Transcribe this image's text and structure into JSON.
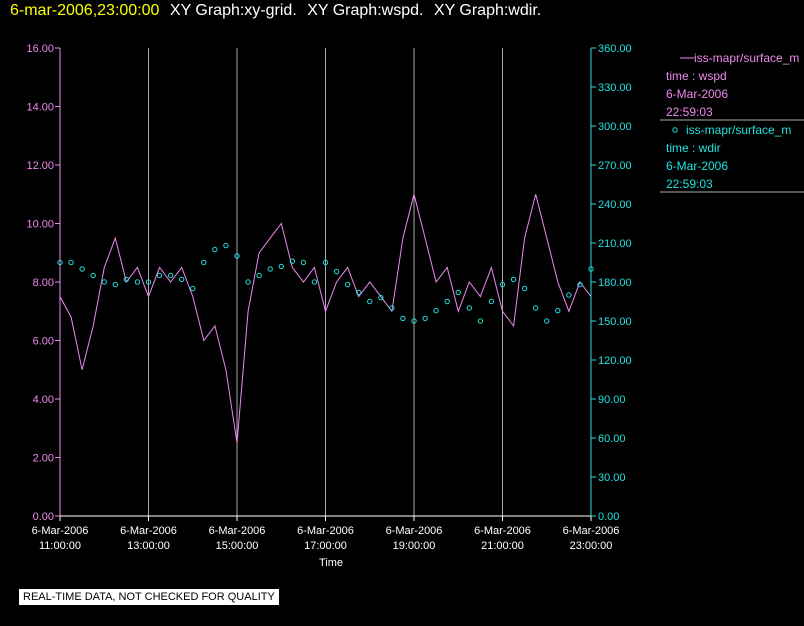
{
  "header": {
    "date": "6-mar-2006,23:00:00",
    "titles": [
      "XY Graph:xy-grid.",
      "XY Graph:wspd.",
      "XY Graph:wdir."
    ]
  },
  "note": "REAL-TIME DATA, NOT CHECKED FOR QUALITY",
  "colors": {
    "wspd": "#ee88ee",
    "wdir": "#22e0e0",
    "grid": "#aaaaaa",
    "title_date": "#ffff00"
  },
  "chart_data": {
    "type": "line",
    "xlabel": "Time",
    "x_ticks": [
      {
        "date": "6-Mar-2006",
        "time": "11:00:00"
      },
      {
        "date": "6-Mar-2006",
        "time": "13:00:00"
      },
      {
        "date": "6-Mar-2006",
        "time": "15:00:00"
      },
      {
        "date": "6-Mar-2006",
        "time": "17:00:00"
      },
      {
        "date": "6-Mar-2006",
        "time": "19:00:00"
      },
      {
        "date": "6-Mar-2006",
        "time": "21:00:00"
      },
      {
        "date": "6-Mar-2006",
        "time": "23:00:00"
      }
    ],
    "xlim_hours": [
      11,
      23
    ],
    "y_left": {
      "ylim": [
        0,
        16
      ],
      "ticks": [
        "0.00",
        "2.00",
        "4.00",
        "6.00",
        "8.00",
        "10.00",
        "12.00",
        "14.00",
        "16.00"
      ]
    },
    "y_right": {
      "ylim": [
        0,
        360
      ],
      "ticks": [
        "0.00",
        "30.00",
        "60.00",
        "90.00",
        "120.00",
        "150.00",
        "180.00",
        "210.00",
        "240.00",
        "270.00",
        "300.00",
        "330.00",
        "360.00"
      ]
    },
    "grid": "vertical",
    "legend_position": "right",
    "series": [
      {
        "name": "iss-mapr/surface_m",
        "var": "time : wspd",
        "last_date": "6-Mar-2006",
        "last_time": "22:59:03",
        "axis": "left",
        "style": "line",
        "x": [
          11.0,
          11.25,
          11.5,
          11.75,
          12.0,
          12.25,
          12.5,
          12.75,
          13.0,
          13.25,
          13.5,
          13.75,
          14.0,
          14.25,
          14.5,
          14.75,
          15.0,
          15.25,
          15.5,
          15.75,
          16.0,
          16.25,
          16.5,
          16.75,
          17.0,
          17.25,
          17.5,
          17.75,
          18.0,
          18.25,
          18.5,
          18.75,
          19.0,
          19.25,
          19.5,
          19.75,
          20.0,
          20.25,
          20.5,
          20.75,
          21.0,
          21.25,
          21.5,
          21.75,
          22.0,
          22.25,
          22.5,
          22.75,
          23.0
        ],
        "y": [
          7.5,
          6.8,
          5.0,
          6.5,
          8.5,
          9.5,
          8.0,
          8.5,
          7.5,
          8.5,
          8.0,
          8.5,
          7.5,
          6.0,
          6.5,
          5.0,
          2.5,
          7.0,
          9.0,
          9.5,
          10.0,
          8.5,
          8.0,
          8.5,
          7.0,
          8.0,
          8.5,
          7.5,
          8.0,
          7.5,
          7.0,
          9.5,
          11.0,
          9.5,
          8.0,
          8.5,
          7.0,
          8.0,
          7.5,
          8.5,
          7.0,
          6.5,
          9.5,
          11.0,
          9.5,
          8.0,
          7.0,
          8.0,
          7.5
        ]
      },
      {
        "name": "iss-mapr/surface_m",
        "var": "time : wdir",
        "last_date": "6-Mar-2006",
        "last_time": "22:59:03",
        "axis": "right",
        "style": "circles",
        "x": [
          11.0,
          11.25,
          11.5,
          11.75,
          12.0,
          12.25,
          12.5,
          12.75,
          13.0,
          13.25,
          13.5,
          13.75,
          14.0,
          14.25,
          14.5,
          14.75,
          15.0,
          15.25,
          15.5,
          15.75,
          16.0,
          16.25,
          16.5,
          16.75,
          17.0,
          17.25,
          17.5,
          17.75,
          18.0,
          18.25,
          18.5,
          18.75,
          19.0,
          19.25,
          19.5,
          19.75,
          20.0,
          20.25,
          20.5,
          20.75,
          21.0,
          21.25,
          21.5,
          21.75,
          22.0,
          22.25,
          22.5,
          22.75,
          23.0
        ],
        "y": [
          195,
          195,
          190,
          185,
          180,
          178,
          182,
          180,
          180,
          185,
          185,
          182,
          175,
          195,
          205,
          208,
          200,
          180,
          185,
          190,
          192,
          196,
          195,
          180,
          195,
          188,
          178,
          172,
          165,
          168,
          160,
          152,
          150,
          152,
          158,
          165,
          172,
          160,
          150,
          165,
          178,
          182,
          175,
          160,
          150,
          158,
          170,
          178,
          190
        ]
      }
    ]
  }
}
